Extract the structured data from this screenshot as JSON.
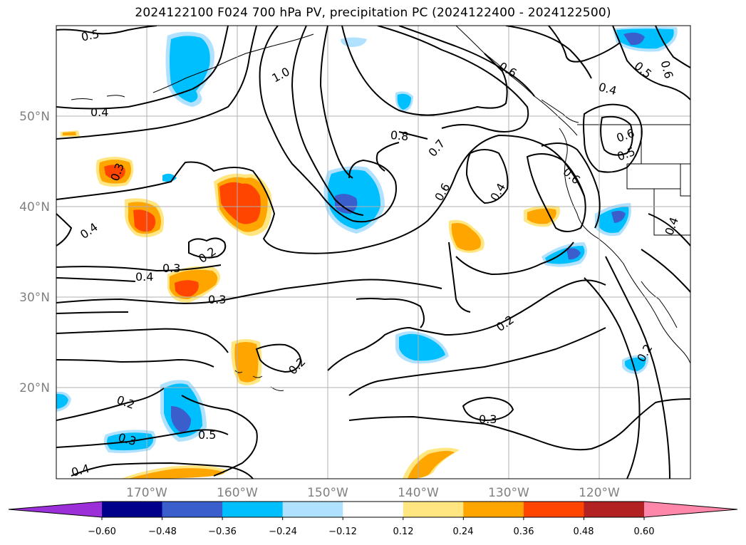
{
  "title": "2024122100 F024 700 hPa PV, precipitation PC (2024122400 - 2024122500)",
  "lon_labels": [
    "170°W",
    "160°W",
    "150°W",
    "140°W",
    "130°W",
    "120°W"
  ],
  "lat_labels": [
    "50°N",
    "40°N",
    "30°N",
    "20°N"
  ],
  "contour_labels": [
    "0.5",
    "1.0",
    "0.6",
    "0.6",
    "0.5",
    "0.4",
    "0.4",
    "0.8",
    "0.7",
    "0.6",
    "0.5",
    "0.6",
    "0.4",
    "0.6",
    "0.4",
    "0.3",
    "0.4",
    "0.2",
    "0.3",
    "0.4",
    "0.3",
    "0.2",
    "0.2",
    "0.2",
    "0.3",
    "0.3",
    "0.2",
    "0.4",
    "0.5"
  ],
  "colorbar": {
    "ticks": [
      "−0.60",
      "−0.48",
      "−0.36",
      "−0.24",
      "−0.12",
      "0.12",
      "0.24",
      "0.36",
      "0.48",
      "0.60"
    ],
    "colors": [
      "#9b30d9",
      "#00008b",
      "#3a5fcd",
      "#00bfff",
      "#b0e2ff",
      "#ffffff",
      "#ffe680",
      "#ffa500",
      "#ff4500",
      "#b22222",
      "#ff88aa"
    ]
  }
}
